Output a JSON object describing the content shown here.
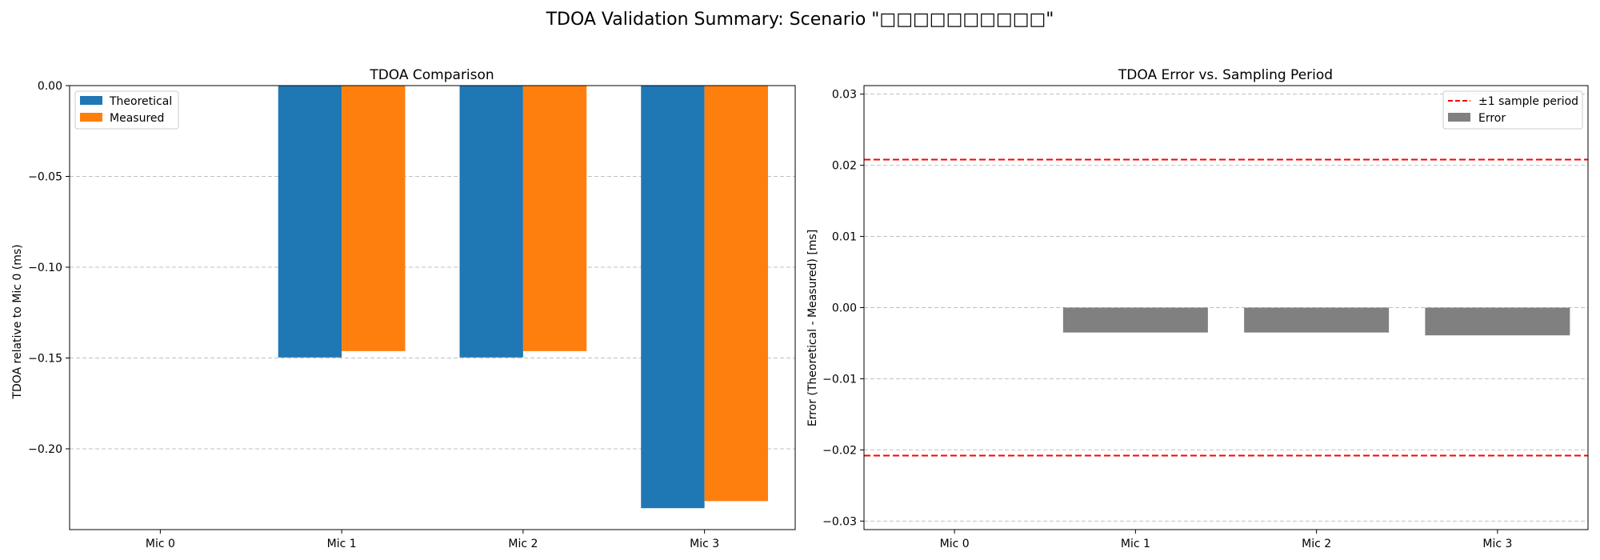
{
  "figure": {
    "title": "TDOA Validation Summary: Scenario \"□□□□□□□□□□\""
  },
  "colors": {
    "theoretical": "#1f77b4",
    "measured": "#ff7f0e",
    "error": "#808080",
    "sample_period_line": "#ff0000",
    "grid": "#b0b0b0"
  },
  "chart_data": [
    {
      "type": "bar",
      "title": "TDOA Comparison",
      "xlabel": "",
      "ylabel": "TDOA relative to Mic 0 (ms)",
      "categories": [
        "Mic 0",
        "Mic 1",
        "Mic 2",
        "Mic 3"
      ],
      "series": [
        {
          "name": "Theoretical",
          "values": [
            0.0,
            -0.1497,
            -0.1497,
            -0.2327
          ]
        },
        {
          "name": "Measured",
          "values": [
            0.0,
            -0.1462,
            -0.1462,
            -0.2288
          ]
        }
      ],
      "ylim": [
        -0.2445,
        0.0
      ],
      "yticks": [
        0.0,
        -0.05,
        -0.1,
        -0.15,
        -0.2
      ],
      "ytick_labels": [
        "0.00",
        "−0.05",
        "−0.10",
        "−0.15",
        "−0.20"
      ],
      "grid": "y dashed",
      "legend": "top-left"
    },
    {
      "type": "bar",
      "title": "TDOA Error vs. Sampling Period",
      "xlabel": "",
      "ylabel": "Error (Theoretical - Measured) [ms]",
      "categories": [
        "Mic 0",
        "Mic 1",
        "Mic 2",
        "Mic 3"
      ],
      "series": [
        {
          "name": "Error",
          "values": [
            0.0,
            -0.0035,
            -0.0035,
            -0.0039
          ]
        }
      ],
      "reference_lines": [
        {
          "name": "±1 sample period",
          "values": [
            0.0208,
            -0.0208
          ],
          "style": "dashed"
        }
      ],
      "ylim": [
        -0.0312,
        0.0312
      ],
      "yticks": [
        0.03,
        0.02,
        0.01,
        0.0,
        -0.01,
        -0.02,
        -0.03
      ],
      "ytick_labels": [
        "0.03",
        "0.02",
        "0.01",
        "0.00",
        "−0.01",
        "−0.02",
        "−0.03"
      ],
      "grid": "y dashed",
      "legend": "top-right"
    }
  ]
}
